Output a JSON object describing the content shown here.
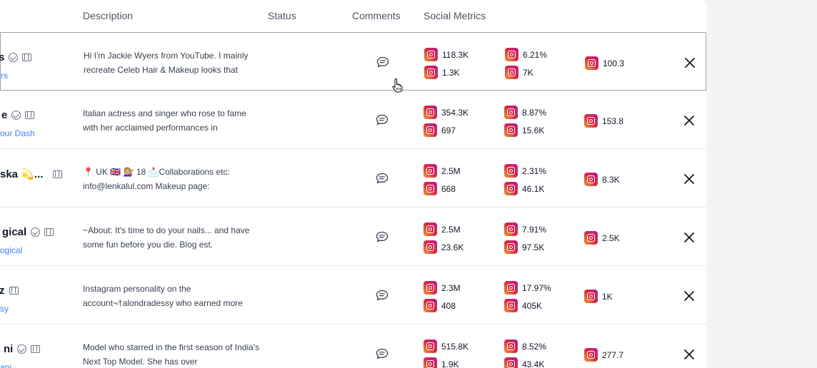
{
  "header": {
    "description": "Description",
    "status": "Status",
    "comments": "Comments",
    "social_metrics": "Social Metrics"
  },
  "icons": {
    "verified": "verified-check-icon",
    "copy": "copy-icon",
    "comment": "comment-icon",
    "instagram": "instagram-icon",
    "close": "close-icon",
    "cursor": "hand-pointer-icon"
  },
  "colors": {
    "handle_link": "#3b82f6",
    "row_border": "#e5e7eb",
    "active_row_border": "#9ca3af"
  },
  "rows": [
    {
      "name": "s",
      "handle": "rs",
      "description": "Hi I'm Jackie Wyers from YouTube. I mainly recreate Celeb Hair & Makeup looks that",
      "followers": "118.3K",
      "avg_comments": "1.3K",
      "engagement_rate": "6.21%",
      "avg_likes": "7K",
      "score": "100.3"
    },
    {
      "name": "e",
      "handle": "our Dash",
      "description": "Italian actress and singer who rose to fame with her acclaimed performances in",
      "followers": "354.3K",
      "avg_comments": "697",
      "engagement_rate": "8.87%",
      "avg_likes": "15.6K",
      "score": "153.8"
    },
    {
      "name": "ska 💫...",
      "handle": "",
      "description": "📍 UK 🇬🇧 💇🏼‍♀️ 18 📩Collaborations etc: info@lenkalul.com Makeup page:",
      "followers": "2.5M",
      "avg_comments": "668",
      "engagement_rate": "2.31%",
      "avg_likes": "46.1K",
      "score": "8.3K"
    },
    {
      "name": "gical",
      "handle": "ogical",
      "description": "~About: It's time to do your nails... and have some fun before you die. Blog est.",
      "followers": "2.5M",
      "avg_comments": "23.6K",
      "engagement_rate": "7.91%",
      "avg_likes": "97.5K",
      "score": "2.5K"
    },
    {
      "name": "z",
      "handle": "sy",
      "description": "Instagram personality on the account¬†alondradessy who earned more",
      "followers": "2.3M",
      "avg_comments": "408",
      "engagement_rate": "17.97%",
      "avg_likes": "405K",
      "score": "1K"
    },
    {
      "name": "ni",
      "handle": "ani",
      "description": "Model who starred in the first season of India's Next Top Model. She has over",
      "followers": "515.8K",
      "avg_comments": "1.9K",
      "engagement_rate": "8.52%",
      "avg_likes": "43.4K",
      "score": "277.7"
    }
  ]
}
